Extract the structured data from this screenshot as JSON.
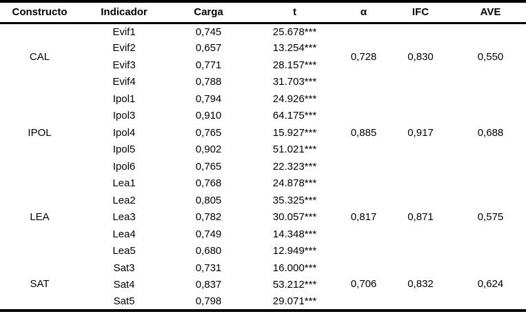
{
  "table": {
    "headers": {
      "constructo": "Constructo",
      "indicador": "Indicador",
      "carga": "Carga",
      "t": "t",
      "alpha": "α",
      "ifc": "IFC",
      "ave": "AVE"
    },
    "groups": [
      {
        "constructo": "CAL",
        "alpha": "0,728",
        "ifc": "0,830",
        "ave": "0,550",
        "rows": [
          {
            "indicador": "Evif1",
            "carga": "0,745",
            "t": "25.678***"
          },
          {
            "indicador": "Evif2",
            "carga": "0,657",
            "t": "13.254***"
          },
          {
            "indicador": "Evif3",
            "carga": "0,771",
            "t": "28.157***"
          },
          {
            "indicador": "Evif4",
            "carga": "0,788",
            "t": "31.703***"
          }
        ]
      },
      {
        "constructo": "IPOL",
        "alpha": "0,885",
        "ifc": "0,917",
        "ave": "0,688",
        "rows": [
          {
            "indicador": "Ipol1",
            "carga": "0,794",
            "t": "24.926***"
          },
          {
            "indicador": "Ipol3",
            "carga": "0,910",
            "t": "64.175***"
          },
          {
            "indicador": "Ipol4",
            "carga": "0,765",
            "t": "15.927***"
          },
          {
            "indicador": "Ipol5",
            "carga": "0,902",
            "t": "51.021***"
          },
          {
            "indicador": "Ipol6",
            "carga": "0,765",
            "t": "22.323***"
          }
        ]
      },
      {
        "constructo": "LEA",
        "alpha": "0,817",
        "ifc": "0,871",
        "ave": "0,575",
        "rows": [
          {
            "indicador": "Lea1",
            "carga": "0,768",
            "t": "24.878***"
          },
          {
            "indicador": "Lea2",
            "carga": "0,805",
            "t": "35.325***"
          },
          {
            "indicador": "Lea3",
            "carga": "0,782",
            "t": "30.057***"
          },
          {
            "indicador": "Lea4",
            "carga": "0,749",
            "t": "14.348***"
          },
          {
            "indicador": "Lea5",
            "carga": "0,680",
            "t": "12.949***"
          }
        ]
      },
      {
        "constructo": "SAT",
        "alpha": "0,706",
        "ifc": "0,832",
        "ave": "0,624",
        "rows": [
          {
            "indicador": "Sat3",
            "carga": "0,731",
            "t": "16.000***"
          },
          {
            "indicador": "Sat4",
            "carga": "0,837",
            "t": "53.212***"
          },
          {
            "indicador": "Sat5",
            "carga": "0,798",
            "t": "29.071***"
          }
        ]
      }
    ]
  }
}
